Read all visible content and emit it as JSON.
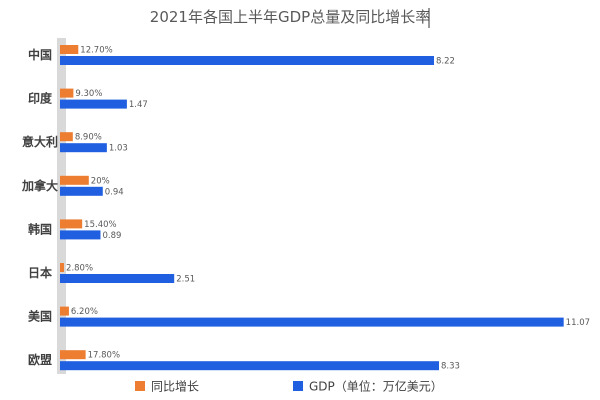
{
  "chart_data": {
    "type": "bar",
    "orientation": "horizontal",
    "title": "2021年各国上半年GDP总量及同比增长率",
    "categories": [
      "中国",
      "印度",
      "意大利",
      "加拿大",
      "韩国",
      "日本",
      "美国",
      "欧盟"
    ],
    "series": [
      {
        "name": "同比增长",
        "color": "#ED7D31",
        "values": [
          12.7,
          9.3,
          8.9,
          20,
          15.4,
          2.8,
          6.2,
          17.8
        ],
        "labels": [
          "12.70%",
          "9.30%",
          "8.90%",
          "20%",
          "15.40%",
          "2.80%",
          "6.20%",
          "17.80%"
        ]
      },
      {
        "name": "GDP（单位：万亿美元）",
        "color": "#1F5FE0",
        "values": [
          8.22,
          1.47,
          1.03,
          0.94,
          0.89,
          2.51,
          11.07,
          8.33
        ],
        "labels": [
          "8.22",
          "1.47",
          "1.03",
          "0.94",
          "0.89",
          "2.51",
          "11.07",
          "8.33"
        ]
      }
    ],
    "legend_position": "bottom",
    "grid": false
  }
}
